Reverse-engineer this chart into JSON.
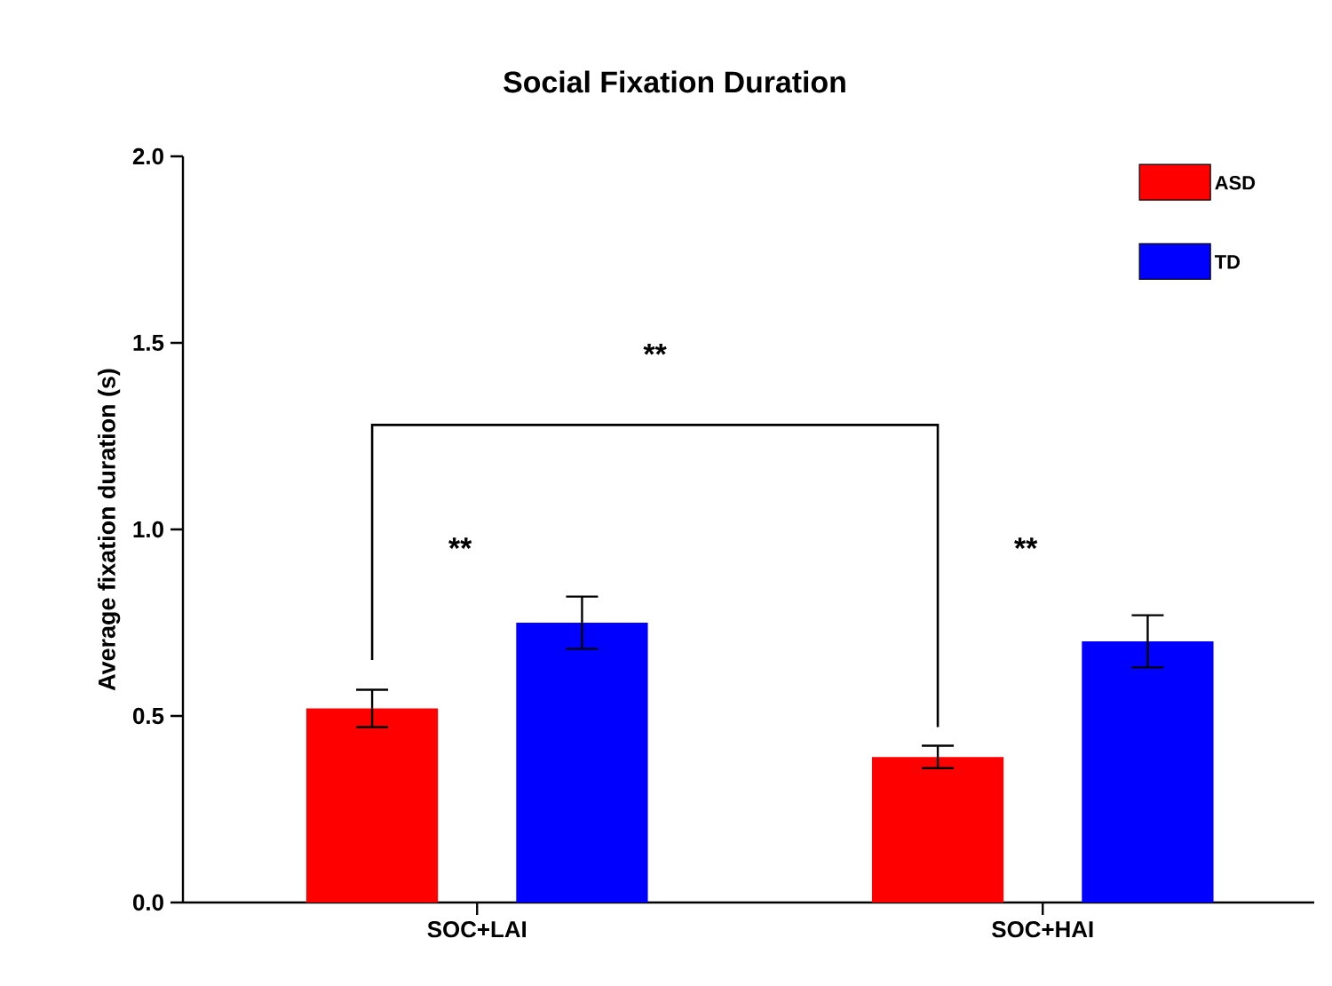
{
  "chart_data": {
    "type": "bar",
    "title": "Social Fixation Duration",
    "ylabel": "Average fixation duration (s)",
    "categories": [
      "SOC+LAI",
      "SOC+HAI"
    ],
    "series": [
      {
        "name": "ASD",
        "color": "#ff0000",
        "values": [
          0.52,
          0.39
        ],
        "errors": [
          0.05,
          0.03
        ]
      },
      {
        "name": "TD",
        "color": "#0000ff",
        "values": [
          0.75,
          0.7
        ],
        "errors": [
          0.07,
          0.07
        ]
      }
    ],
    "ylim": [
      0,
      2
    ],
    "yticks": [
      {
        "value": 0,
        "label": "0.0"
      },
      {
        "value": 0.5,
        "label": "0.5"
      },
      {
        "value": 1,
        "label": "1.0"
      },
      {
        "value": 1.5,
        "label": "1.5"
      },
      {
        "value": 2,
        "label": "2.0"
      }
    ],
    "legend": "top right",
    "grid": false,
    "annotations": [
      "**",
      "**",
      "**"
    ]
  }
}
